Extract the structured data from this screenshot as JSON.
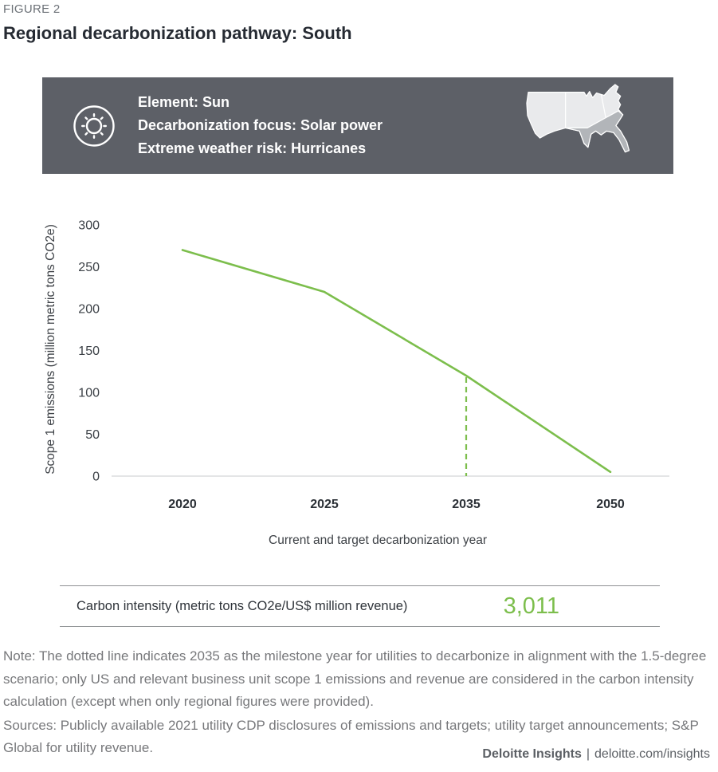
{
  "figure_label": "FIGURE 2",
  "title": "Regional decarbonization pathway: South",
  "banner": {
    "background_color": "#5d6067",
    "icon": "sun-icon",
    "lines": [
      "Element: Sun",
      "Decarbonization focus: Solar power",
      "Extreme weather risk: Hurricanes"
    ],
    "map": {
      "description": "US map with South region highlighted",
      "land_color": "#e9eaec",
      "highlight_color": "#b2b5b9",
      "highlighted_region": "South"
    }
  },
  "chart_data": {
    "type": "line",
    "categories": [
      "2020",
      "2025",
      "2035",
      "2050"
    ],
    "series": [
      {
        "name": "Scope 1 emissions",
        "values": [
          270,
          220,
          120,
          5
        ]
      }
    ],
    "milestone_year": "2035",
    "milestone_value": 120,
    "ylabel": "Scope 1 emissions (million metric tons CO2e)",
    "xlabel": "Current and target decarbonization year",
    "yticks": [
      0,
      50,
      100,
      150,
      200,
      250,
      300
    ],
    "ylim": [
      0,
      300
    ],
    "line_color": "#7cbe4c",
    "grid": false,
    "legend_position": "none"
  },
  "carbon_intensity": {
    "label": "Carbon intensity (metric tons CO2e/US$ million revenue)",
    "value": "3,011",
    "value_color": "#7cbe4c"
  },
  "note": "Note: The dotted line indicates 2035 as the milestone year for utilities to decarbonize in alignment with the 1.5-degree scenario; only US and relevant business unit scope 1 emissions and revenue are considered in the carbon intensity calculation (except when only regional figures were provided).",
  "sources": "Sources: Publicly available 2021 utility CDP disclosures of emissions and targets; utility target announcements; S&P Global for utility revenue.",
  "footer": {
    "brand": "Deloitte Insights",
    "separator": "|",
    "site": "deloitte.com/insights"
  }
}
